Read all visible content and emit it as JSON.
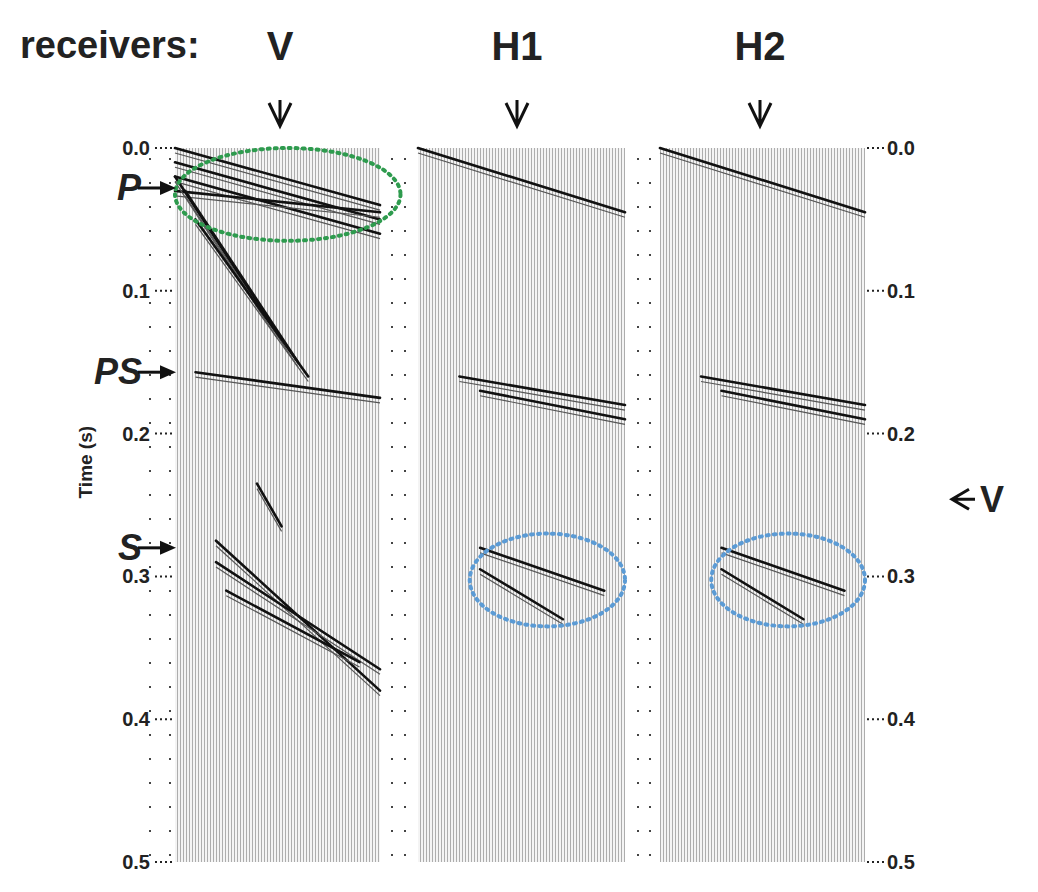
{
  "chart_data": {
    "type": "seismogram",
    "title": "receivers:",
    "y_label": "Time (s)",
    "ylim": [
      0,
      0.5
    ],
    "yticks": [
      {
        "value": 0,
        "label": "0.0"
      },
      0.1,
      0.2,
      0.3,
      0.4,
      0.5
    ],
    "panels": [
      {
        "name": "V",
        "events": [
          {
            "x": [
              0,
              1
            ],
            "t": [
              0.0,
              0.04
            ]
          },
          {
            "x": [
              0,
              1
            ],
            "t": [
              0.01,
              0.05
            ]
          },
          {
            "x": [
              0,
              1
            ],
            "t": [
              0.02,
              0.06
            ]
          },
          {
            "x": [
              0,
              1
            ],
            "t": [
              0.03,
              0.045
            ]
          },
          {
            "x": [
              0,
              0.5
            ],
            "t": [
              0.02,
              0.13
            ]
          },
          {
            "x": [
              0.05,
              0.6
            ],
            "t": [
              0.03,
              0.15
            ]
          },
          {
            "x": [
              0.1,
              0.65
            ],
            "t": [
              0.05,
              0.16
            ]
          },
          {
            "x": [
              0.1,
              1
            ],
            "t": [
              0.157,
              0.175
            ]
          },
          {
            "x": [
              0.4,
              0.52
            ],
            "t": [
              0.235,
              0.265
            ]
          },
          {
            "x": [
              0.2,
              1
            ],
            "t": [
              0.275,
              0.38
            ]
          },
          {
            "x": [
              0.2,
              1
            ],
            "t": [
              0.29,
              0.365
            ]
          },
          {
            "x": [
              0.25,
              0.9
            ],
            "t": [
              0.31,
              0.36
            ]
          }
        ],
        "ellipses": [
          {
            "x": [
              0,
              1.1
            ],
            "t": [
              0.0,
              0.065
            ],
            "color": "#2e9b4e"
          }
        ]
      },
      {
        "name": "H1",
        "events": [
          {
            "x": [
              0,
              1
            ],
            "t": [
              0.0,
              0.045
            ]
          },
          {
            "x": [
              0.2,
              1
            ],
            "t": [
              0.16,
              0.18
            ]
          },
          {
            "x": [
              0.3,
              1
            ],
            "t": [
              0.17,
              0.19
            ]
          },
          {
            "x": [
              0.3,
              0.9
            ],
            "t": [
              0.28,
              0.31
            ]
          },
          {
            "x": [
              0.3,
              0.7
            ],
            "t": [
              0.295,
              0.33
            ]
          }
        ],
        "ellipses": [
          {
            "x": [
              0.25,
              1
            ],
            "t": [
              0.27,
              0.335
            ],
            "color": "#5b9bd5"
          }
        ]
      },
      {
        "name": "H2",
        "events": [
          {
            "x": [
              0,
              1
            ],
            "t": [
              0.0,
              0.045
            ]
          },
          {
            "x": [
              0.2,
              1
            ],
            "t": [
              0.16,
              0.18
            ]
          },
          {
            "x": [
              0.3,
              1
            ],
            "t": [
              0.17,
              0.19
            ]
          },
          {
            "x": [
              0.3,
              0.9
            ],
            "t": [
              0.28,
              0.31
            ]
          },
          {
            "x": [
              0.3,
              0.7
            ],
            "t": [
              0.295,
              0.33
            ]
          }
        ],
        "ellipses": [
          {
            "x": [
              0.25,
              1
            ],
            "t": [
              0.27,
              0.335
            ],
            "color": "#5b9bd5"
          }
        ]
      }
    ],
    "annotations": [
      {
        "text": "P",
        "time": 0.028
      },
      {
        "text": "PS",
        "time": 0.157
      },
      {
        "text": "S",
        "time": 0.28
      }
    ],
    "right_annotation": {
      "text": "V",
      "time": 0.246
    }
  }
}
